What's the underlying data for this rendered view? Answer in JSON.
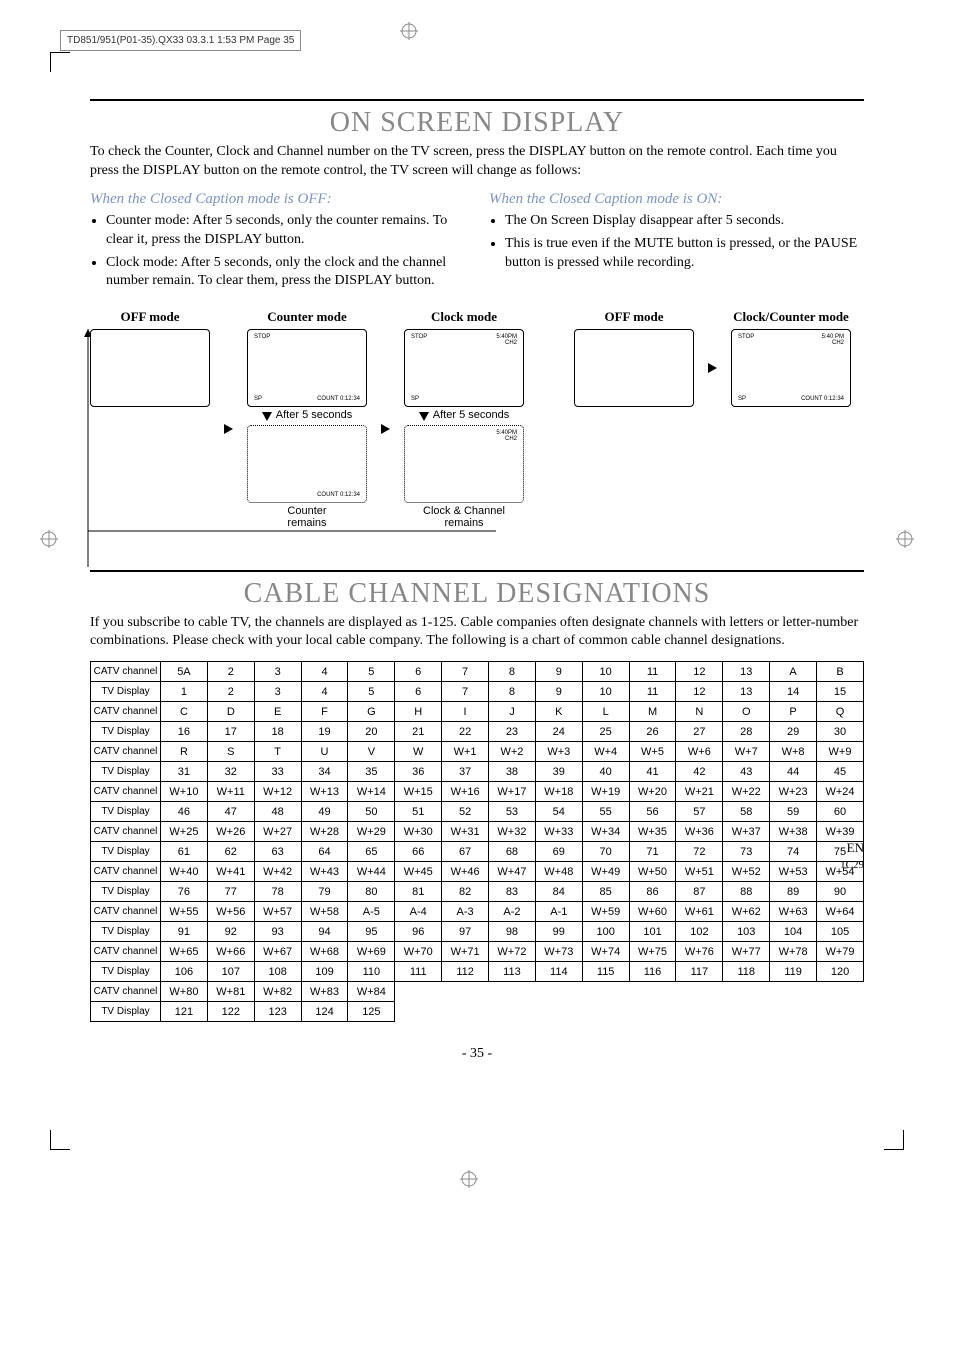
{
  "meta": {
    "header_line": "TD851/951(P01-35).QX33  03.3.1 1:53 PM  Page 35"
  },
  "section1": {
    "title": "ON SCREEN DISPLAY",
    "intro": "To check the Counter, Clock and Channel number on the TV screen, press the DISPLAY button on the remote control. Each time you press the DISPLAY button on the remote control, the TV screen will change as follows:",
    "left": {
      "subhead": "When the Closed Caption mode is OFF:",
      "bullets": [
        "Counter mode: After 5 seconds, only the counter remains. To clear it, press the DISPLAY button.",
        "Clock mode: After 5 seconds, only the clock and the channel number remain. To clear them, press the DISPLAY button."
      ]
    },
    "right": {
      "subhead": "When the Closed Caption mode is ON:",
      "bullets": [
        "The On Screen Display disappear after 5 seconds.",
        "This is true even if the MUTE button is pressed, or the PAUSE button is pressed while recording."
      ]
    },
    "diagram": {
      "off": "OFF mode",
      "counter": "Counter mode",
      "clock": "Clock mode",
      "clockcounter": "Clock/Counter mode",
      "stop": "STOP",
      "sp": "SP",
      "count": "COUNT 0:12:34",
      "time": "5:40PM",
      "time2": "5:40 PM",
      "ch": "CH2",
      "after": "After 5 seconds",
      "counter_remains": "Counter",
      "remains": "remains",
      "clockch_remains": "Clock & Channel"
    }
  },
  "section2": {
    "title": "CABLE CHANNEL DESIGNATIONS",
    "intro": "If you subscribe to cable TV, the channels are displayed as 1-125. Cable companies often designate channels with letters or letter-number combinations. Please check with your local cable company. The following is a chart of common cable channel designations.",
    "rowhdr_catv": "CATV channel",
    "rowhdr_tv": "TV Display",
    "rows": [
      {
        "catv": [
          "5A",
          "2",
          "3",
          "4",
          "5",
          "6",
          "7",
          "8",
          "9",
          "10",
          "11",
          "12",
          "13",
          "A",
          "B"
        ],
        "tv": [
          "1",
          "2",
          "3",
          "4",
          "5",
          "6",
          "7",
          "8",
          "9",
          "10",
          "11",
          "12",
          "13",
          "14",
          "15"
        ]
      },
      {
        "catv": [
          "C",
          "D",
          "E",
          "F",
          "G",
          "H",
          "I",
          "J",
          "K",
          "L",
          "M",
          "N",
          "O",
          "P",
          "Q"
        ],
        "tv": [
          "16",
          "17",
          "18",
          "19",
          "20",
          "21",
          "22",
          "23",
          "24",
          "25",
          "26",
          "27",
          "28",
          "29",
          "30"
        ]
      },
      {
        "catv": [
          "R",
          "S",
          "T",
          "U",
          "V",
          "W",
          "W+1",
          "W+2",
          "W+3",
          "W+4",
          "W+5",
          "W+6",
          "W+7",
          "W+8",
          "W+9"
        ],
        "tv": [
          "31",
          "32",
          "33",
          "34",
          "35",
          "36",
          "37",
          "38",
          "39",
          "40",
          "41",
          "42",
          "43",
          "44",
          "45"
        ]
      },
      {
        "catv": [
          "W+10",
          "W+11",
          "W+12",
          "W+13",
          "W+14",
          "W+15",
          "W+16",
          "W+17",
          "W+18",
          "W+19",
          "W+20",
          "W+21",
          "W+22",
          "W+23",
          "W+24"
        ],
        "tv": [
          "46",
          "47",
          "48",
          "49",
          "50",
          "51",
          "52",
          "53",
          "54",
          "55",
          "56",
          "57",
          "58",
          "59",
          "60"
        ]
      },
      {
        "catv": [
          "W+25",
          "W+26",
          "W+27",
          "W+28",
          "W+29",
          "W+30",
          "W+31",
          "W+32",
          "W+33",
          "W+34",
          "W+35",
          "W+36",
          "W+37",
          "W+38",
          "W+39"
        ],
        "tv": [
          "61",
          "62",
          "63",
          "64",
          "65",
          "66",
          "67",
          "68",
          "69",
          "70",
          "71",
          "72",
          "73",
          "74",
          "75"
        ]
      },
      {
        "catv": [
          "W+40",
          "W+41",
          "W+42",
          "W+43",
          "W+44",
          "W+45",
          "W+46",
          "W+47",
          "W+48",
          "W+49",
          "W+50",
          "W+51",
          "W+52",
          "W+53",
          "W+54"
        ],
        "tv": [
          "76",
          "77",
          "78",
          "79",
          "80",
          "81",
          "82",
          "83",
          "84",
          "85",
          "86",
          "87",
          "88",
          "89",
          "90"
        ]
      },
      {
        "catv": [
          "W+55",
          "W+56",
          "W+57",
          "W+58",
          "A-5",
          "A-4",
          "A-3",
          "A-2",
          "A-1",
          "W+59",
          "W+60",
          "W+61",
          "W+62",
          "W+63",
          "W+64"
        ],
        "tv": [
          "91",
          "92",
          "93",
          "94",
          "95",
          "96",
          "97",
          "98",
          "99",
          "100",
          "101",
          "102",
          "103",
          "104",
          "105"
        ]
      },
      {
        "catv": [
          "W+65",
          "W+66",
          "W+67",
          "W+68",
          "W+69",
          "W+70",
          "W+71",
          "W+72",
          "W+73",
          "W+74",
          "W+75",
          "W+76",
          "W+77",
          "W+78",
          "W+79"
        ],
        "tv": [
          "106",
          "107",
          "108",
          "109",
          "110",
          "111",
          "112",
          "113",
          "114",
          "115",
          "116",
          "117",
          "118",
          "119",
          "120"
        ]
      },
      {
        "catv": [
          "W+80",
          "W+81",
          "W+82",
          "W+83",
          "W+84"
        ],
        "tv": [
          "121",
          "122",
          "123",
          "124",
          "125"
        ]
      }
    ]
  },
  "footer": {
    "page": "- 35 -",
    "en": "EN",
    "code": "1C29"
  }
}
